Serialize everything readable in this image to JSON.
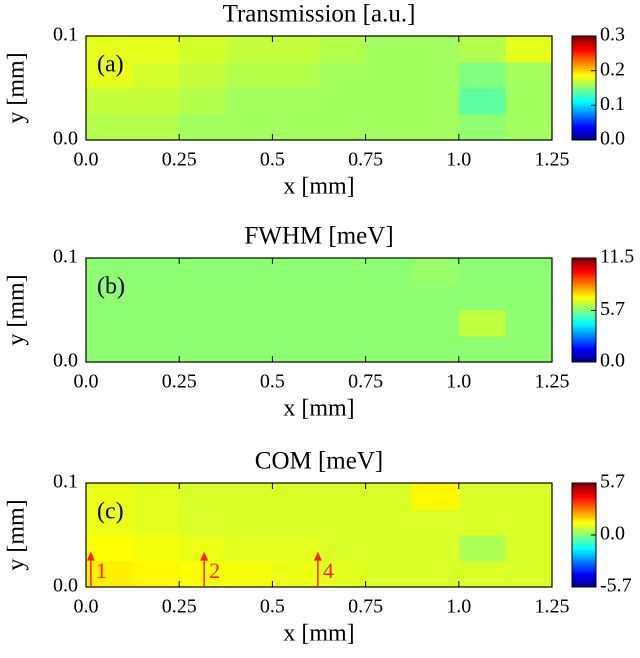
{
  "chart_data": [
    {
      "type": "heatmap",
      "title": "Transmission [a.u.]",
      "panel_label": "(a)",
      "xlabel": "x [mm]",
      "ylabel": "y [mm]",
      "xlim": [
        0,
        1.25
      ],
      "ylim": [
        0,
        0.1
      ],
      "xticks": [
        {
          "value": 0,
          "label": "0.0"
        },
        0.25,
        0.5,
        0.75,
        {
          "value": 1,
          "label": "1.0"
        },
        1.25
      ],
      "yticks": [
        {
          "value": 0,
          "label": "0.0"
        },
        0.1
      ],
      "colormap": "jet",
      "zlim": [
        0,
        0.3
      ],
      "zticks": [
        {
          "value": 0,
          "label": "0.0"
        },
        0.1,
        0.2,
        0.3
      ],
      "z": [
        [
          0.165,
          0.165,
          0.16,
          0.16,
          0.16,
          0.16,
          0.16,
          0.16,
          0.155,
          0.16
        ],
        [
          0.17,
          0.17,
          0.165,
          0.16,
          0.16,
          0.16,
          0.16,
          0.16,
          0.14,
          0.16
        ],
        [
          0.18,
          0.175,
          0.17,
          0.165,
          0.165,
          0.16,
          0.16,
          0.16,
          0.15,
          0.16
        ],
        [
          0.18,
          0.18,
          0.175,
          0.17,
          0.17,
          0.165,
          0.16,
          0.16,
          0.165,
          0.18
        ]
      ]
    },
    {
      "type": "heatmap",
      "title": "FWHM [meV]",
      "panel_label": "(b)",
      "xlabel": "x [mm]",
      "ylabel": "y [mm]",
      "xlim": [
        0,
        1.25
      ],
      "ylim": [
        0,
        0.1
      ],
      "xticks": [
        {
          "value": 0,
          "label": "0.0"
        },
        0.25,
        0.5,
        0.75,
        {
          "value": 1,
          "label": "1.0"
        },
        1.25
      ],
      "yticks": [
        {
          "value": 0,
          "label": "0.0"
        },
        0.1
      ],
      "colormap": "jet",
      "zlim": [
        0,
        11.5
      ],
      "zticks": [
        {
          "value": 0,
          "label": "0.0"
        },
        5.7,
        11.5
      ],
      "z": [
        [
          5.9,
          5.9,
          5.9,
          5.9,
          5.9,
          5.9,
          5.9,
          5.9,
          5.9,
          5.9
        ],
        [
          5.9,
          5.9,
          5.9,
          5.9,
          5.9,
          5.9,
          5.9,
          5.9,
          6.5,
          5.9
        ],
        [
          5.9,
          5.9,
          5.9,
          5.9,
          5.9,
          5.9,
          5.9,
          5.9,
          5.9,
          5.9
        ],
        [
          5.9,
          5.9,
          5.9,
          5.9,
          5.9,
          5.9,
          5.9,
          6.0,
          5.9,
          5.9
        ]
      ]
    },
    {
      "type": "heatmap",
      "title": "COM [meV]",
      "panel_label": "(c)",
      "xlabel": "x [mm]",
      "ylabel": "y [mm]",
      "xlim": [
        0,
        1.25
      ],
      "ylim": [
        0,
        0.1
      ],
      "xticks": [
        {
          "value": 0,
          "label": "0.0"
        },
        0.25,
        0.5,
        0.75,
        {
          "value": 1,
          "label": "1.0"
        },
        1.25
      ],
      "yticks": [
        {
          "value": 0,
          "label": "0.0"
        },
        0.1
      ],
      "colormap": "jet",
      "zlim": [
        -5.7,
        5.7
      ],
      "zticks": [
        -5.7,
        {
          "value": 0,
          "label": "0.0"
        },
        5.7
      ],
      "z": [
        [
          1.6,
          1.5,
          1.4,
          1.3,
          1.2,
          1.1,
          1.0,
          1.0,
          1.0,
          1.0
        ],
        [
          1.4,
          1.3,
          1.2,
          1.1,
          1.1,
          1.0,
          1.0,
          1.0,
          0.5,
          1.0
        ],
        [
          1.2,
          1.1,
          1.0,
          1.0,
          1.0,
          1.0,
          1.0,
          1.0,
          1.0,
          1.0
        ],
        [
          1.2,
          1.1,
          1.0,
          1.0,
          1.0,
          1.0,
          1.0,
          1.5,
          1.0,
          1.0
        ]
      ],
      "annotations": [
        {
          "text": "1",
          "x": 0.013,
          "y": 0.034,
          "color": "#ff2020"
        },
        {
          "text": "2",
          "x": 0.317,
          "y": 0.034,
          "color": "#ff2020"
        },
        {
          "text": "4",
          "x": 0.622,
          "y": 0.034,
          "color": "#ff2020"
        }
      ]
    }
  ]
}
